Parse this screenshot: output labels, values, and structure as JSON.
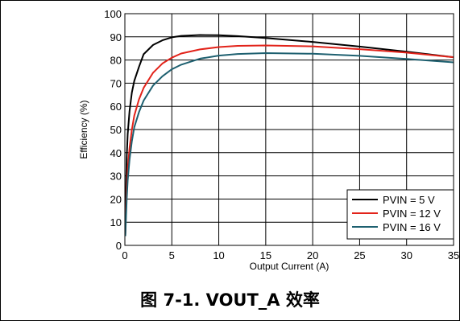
{
  "chart_data": {
    "type": "line",
    "xlabel": "Output Current (A)",
    "ylabel": "Efficiency (%)",
    "xlim": [
      0,
      35
    ],
    "ylim": [
      0,
      100
    ],
    "x_ticks": [
      0,
      5,
      10,
      15,
      20,
      25,
      30,
      35
    ],
    "y_ticks": [
      0,
      10,
      20,
      30,
      40,
      50,
      60,
      70,
      80,
      90,
      100
    ],
    "grid": true,
    "legend_position": "bottom-right",
    "series": [
      {
        "name": "PVIN = 5 V",
        "color": "#000000",
        "x": [
          0.05,
          0.1,
          0.2,
          0.3,
          0.5,
          0.75,
          1,
          1.5,
          2,
          3,
          4,
          5,
          6,
          8,
          10,
          12,
          15,
          20,
          25,
          30,
          35
        ],
        "y": [
          8,
          20,
          38,
          48,
          58,
          66,
          71,
          77,
          82.5,
          86.5,
          88.5,
          89.8,
          90.4,
          90.8,
          90.7,
          90.3,
          89.5,
          87.8,
          85.8,
          83.6,
          81.2
        ]
      },
      {
        "name": "PVIN = 12 V",
        "color": "#e2231a",
        "x": [
          0.05,
          0.1,
          0.2,
          0.3,
          0.5,
          0.75,
          1,
          1.5,
          2,
          3,
          4,
          5,
          6,
          8,
          10,
          12,
          15,
          20,
          25,
          30,
          35
        ],
        "y": [
          5,
          12,
          25,
          33,
          42,
          50,
          56,
          63,
          68,
          74.5,
          78.5,
          81,
          82.8,
          84.6,
          85.6,
          86.1,
          86.3,
          85.9,
          84.7,
          83.2,
          81.2
        ]
      },
      {
        "name": "PVIN = 16 V",
        "color": "#1e6070",
        "x": [
          0.05,
          0.1,
          0.2,
          0.3,
          0.5,
          0.75,
          1,
          1.5,
          2,
          3,
          4,
          5,
          6,
          8,
          10,
          12,
          15,
          20,
          25,
          30,
          35
        ],
        "y": [
          4,
          10,
          20,
          28,
          37,
          45,
          51,
          57.5,
          62.5,
          69,
          73,
          76,
          78,
          80.6,
          81.9,
          82.6,
          83.0,
          82.7,
          81.8,
          80.5,
          79
        ]
      }
    ]
  },
  "caption": "图 7-1. VOUT_A 效率"
}
